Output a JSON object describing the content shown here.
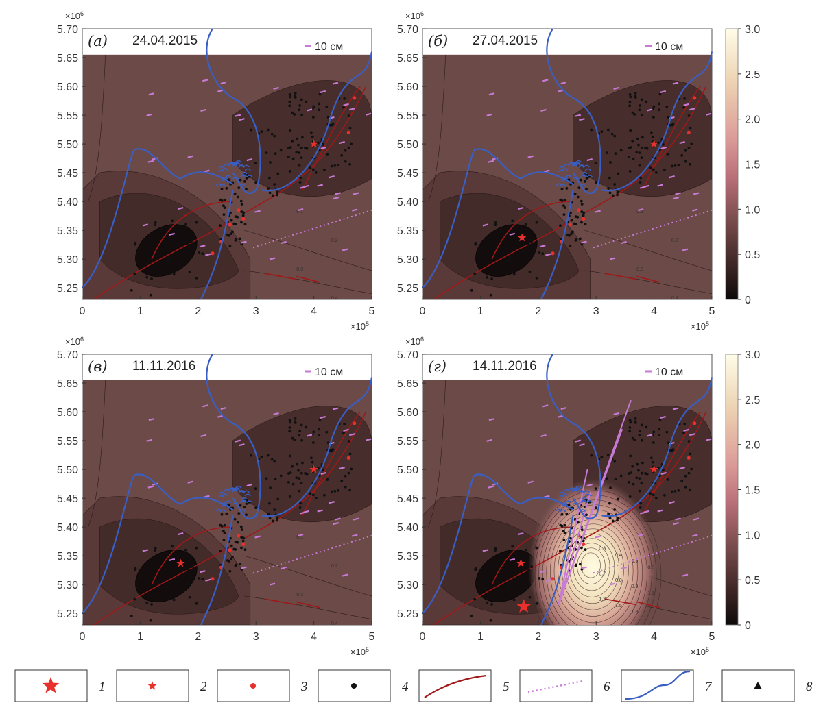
{
  "x_exponent": "×10",
  "x_exponent_power": "5",
  "y_exponent": "×10",
  "y_exponent_power": "6",
  "scale_arrow_label": "10 см",
  "chart_data": [
    {
      "type": "heatmap",
      "panel_label": "(а)",
      "date": "24.04.2015",
      "xlim": [
        0,
        5
      ],
      "ylim": [
        5.23,
        5.7
      ],
      "x_ticks": [
        "0",
        "1",
        "2",
        "3",
        "4",
        "5"
      ],
      "y_ticks": [
        "5.70",
        "5.65",
        "5.60",
        "5.55",
        "5.50",
        "5.45",
        "5.40",
        "5.35",
        "5.30",
        "5.25"
      ],
      "contour_labels": [
        "0.1",
        "0.2",
        "0.3",
        "0.4"
      ],
      "stars_small": [
        [
          4.0,
          5.5
        ]
      ],
      "large_star": null
    },
    {
      "type": "heatmap",
      "panel_label": "(б)",
      "date": "27.04.2015",
      "xlim": [
        0,
        5
      ],
      "ylim": [
        5.23,
        5.7
      ],
      "x_ticks": [
        "0",
        "1",
        "2",
        "3",
        "4",
        "5"
      ],
      "y_ticks": [
        "5.70",
        "5.65",
        "5.60",
        "5.55",
        "5.50",
        "5.45",
        "5.40",
        "5.35",
        "5.30",
        "5.25"
      ],
      "contour_labels": [
        "0.1",
        "0.2",
        "0.3",
        "0.4"
      ],
      "stars_small": [
        [
          4.0,
          5.5
        ],
        [
          1.72,
          5.337
        ]
      ],
      "large_star": null
    },
    {
      "type": "heatmap",
      "panel_label": "(в)",
      "date": "11.11.2016",
      "xlim": [
        0,
        5
      ],
      "ylim": [
        5.23,
        5.7
      ],
      "x_ticks": [
        "0",
        "1",
        "2",
        "3",
        "4",
        "5"
      ],
      "y_ticks": [
        "5.70",
        "5.65",
        "5.60",
        "5.55",
        "5.50",
        "5.45",
        "5.40",
        "5.35",
        "5.30",
        "5.25"
      ],
      "contour_labels": [
        "0.1",
        "0.2",
        "0.3",
        "0.4",
        "0.5"
      ],
      "stars_small": [
        [
          4.0,
          5.5
        ],
        [
          1.7,
          5.337
        ]
      ],
      "large_star": null
    },
    {
      "type": "heatmap",
      "panel_label": "(г)",
      "date": "14.11.2016",
      "xlim": [
        0,
        5
      ],
      "ylim": [
        5.23,
        5.7
      ],
      "x_ticks": [
        "0",
        "1",
        "2",
        "3",
        "4",
        "5"
      ],
      "y_ticks": [
        "5.70",
        "5.65",
        "5.60",
        "5.55",
        "5.50",
        "5.45",
        "5.40",
        "5.35",
        "5.30",
        "5.25"
      ],
      "contour_labels": [
        "0.3",
        "0.4",
        "0.5",
        "0.6",
        "0.7",
        "0.8",
        "0.9",
        "1.1",
        "1.3",
        "1.5",
        "1.8"
      ],
      "stars_small": [
        [
          4.0,
          5.5
        ],
        [
          1.7,
          5.337
        ]
      ],
      "large_star": [
        1.75,
        5.262
      ]
    }
  ],
  "colorbar": {
    "ticks": [
      "3.0",
      "2.5",
      "2.0",
      "1.5",
      "1.0",
      "0.5",
      "0"
    ],
    "values": [
      3.0,
      2.5,
      2.0,
      1.5,
      1.0,
      0.5,
      0
    ],
    "colors": [
      "#0d0a0a",
      "#3b2423",
      "#7c4e4e",
      "#b96f78",
      "#dc9d99",
      "#edd2b2",
      "#fffde8"
    ]
  },
  "legend": [
    {
      "number": "1",
      "symbol": "large-star"
    },
    {
      "number": "2",
      "symbol": "small-star"
    },
    {
      "number": "3",
      "symbol": "red-dot"
    },
    {
      "number": "4",
      "symbol": "black-dot"
    },
    {
      "number": "5",
      "symbol": "fault-line"
    },
    {
      "number": "6",
      "symbol": "dotted-line"
    },
    {
      "number": "7",
      "symbol": "coastline"
    },
    {
      "number": "8",
      "symbol": "triangle"
    }
  ],
  "colors": {
    "coast": "#3a5fc4",
    "fault": "#a01818",
    "vector": "#c77ad6",
    "star": "#e8302c",
    "field_low": "#2f1e1c",
    "field_mid": "#6b4a47",
    "field_high": "#fffbe0"
  }
}
